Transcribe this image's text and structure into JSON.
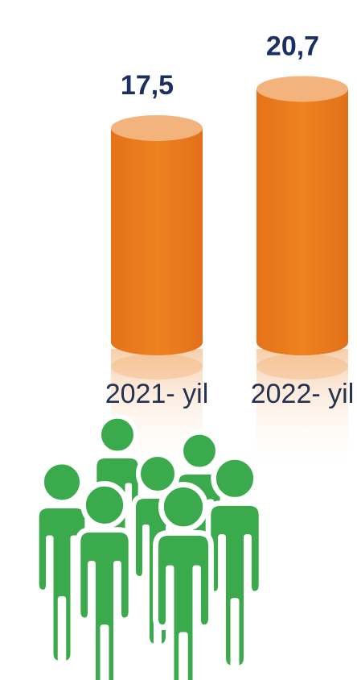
{
  "chart_data": {
    "type": "bar",
    "style": "3d-cylinder",
    "categories": [
      "2021- yil",
      "2022- yil"
    ],
    "values": [
      17.5,
      20.7
    ],
    "value_labels": [
      "17,5",
      "20,7"
    ],
    "title": "",
    "xlabel": "",
    "ylabel": "",
    "ylim": [
      0,
      22
    ],
    "grid": false,
    "legend": "none"
  },
  "colors": {
    "bar_body": "#ea7b1d",
    "bar_top": "#f3b37c",
    "bar_shadow": "#d7650f",
    "value_text": "#1c2f62",
    "category_text": "#24314f",
    "people_fill": "#3aaa4c",
    "people_outline": "#ffffff"
  },
  "illustration": {
    "icon": "people-group-icon",
    "count": 8
  }
}
